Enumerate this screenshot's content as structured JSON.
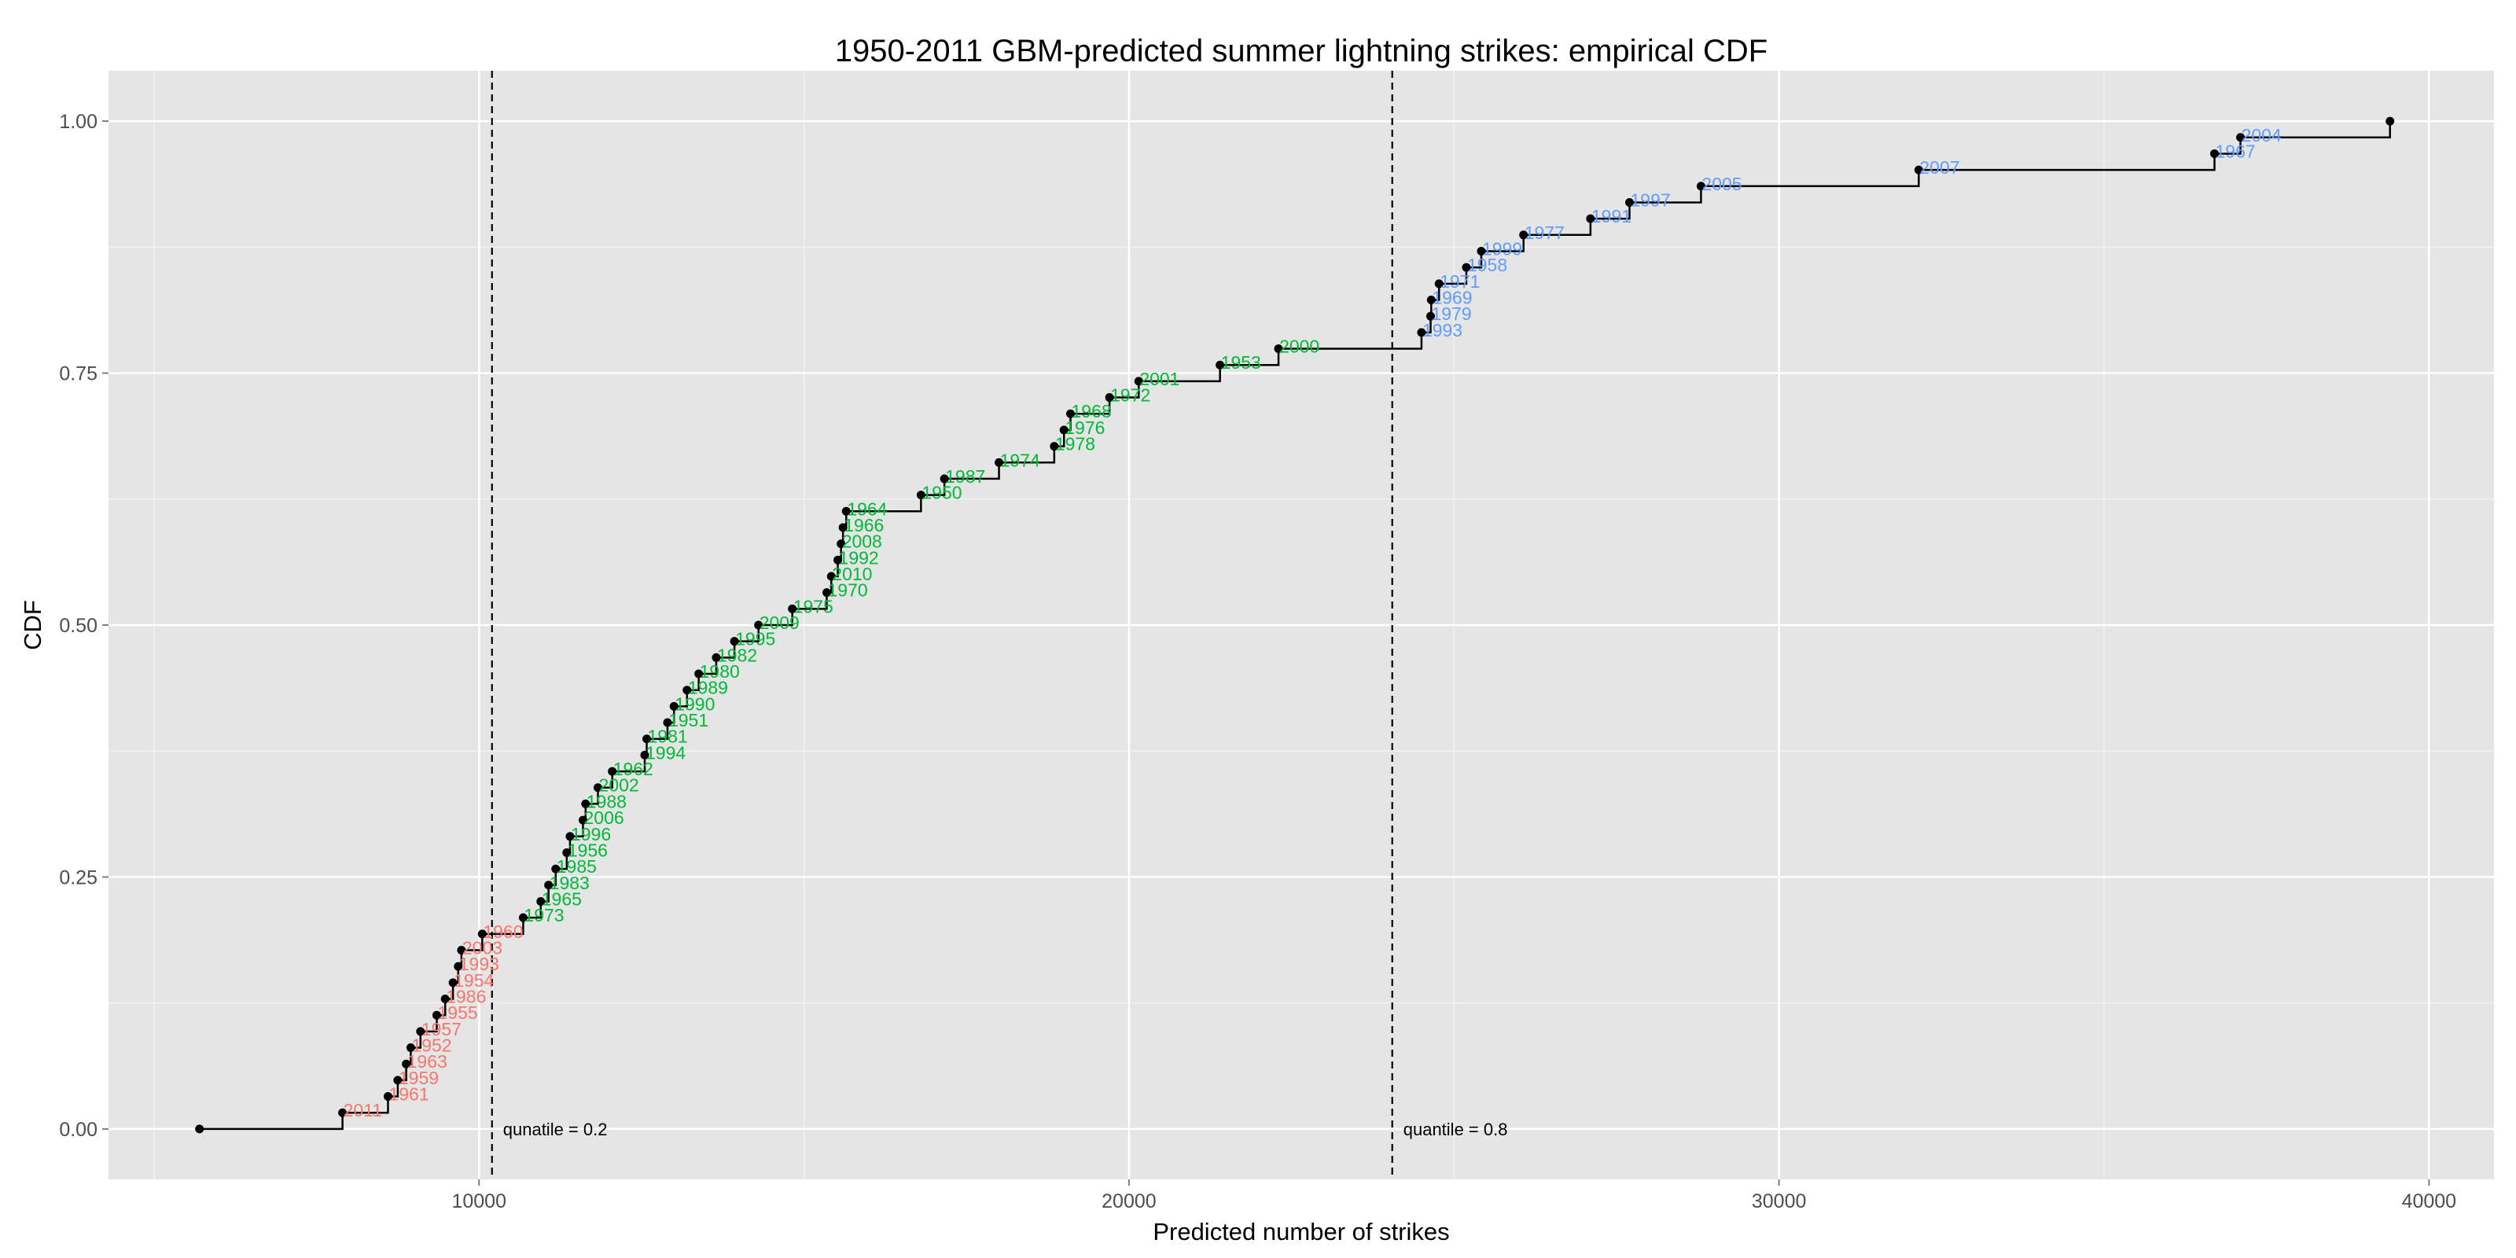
{
  "chart_data": {
    "type": "step",
    "title": "1950-2011 GBM-predicted summer lightning strikes: empirical CDF",
    "xlabel": "Predicted number of strikes",
    "ylabel": "CDF",
    "xlim": [
      4300,
      41000
    ],
    "ylim": [
      -0.05,
      1.05
    ],
    "x_ticks": [
      10000,
      20000,
      30000,
      40000
    ],
    "x_tick_labels": [
      "10000",
      "20000",
      "30000",
      "40000"
    ],
    "y_ticks": [
      0,
      0.25,
      0.5,
      0.75,
      1
    ],
    "y_tick_labels": [
      "0.00",
      "0.25",
      "0.50",
      "0.75",
      "1.00"
    ],
    "grid": true,
    "legend": "none",
    "vlines": [
      {
        "x": 10200,
        "label": "qunatile = 0.2"
      },
      {
        "x": 24050,
        "label": "quantile = 0.8"
      }
    ],
    "colors": {
      "low": "#F8766D",
      "mid": "#00BA38",
      "high": "#619CFF",
      "panel": "#E5E5E5",
      "step": "#000000"
    },
    "start_point": {
      "x": 5700,
      "y": 0.0
    },
    "points": [
      {
        "year": "2011",
        "x": 7900,
        "group": "low"
      },
      {
        "year": "1961",
        "x": 8600,
        "group": "low"
      },
      {
        "year": "1959",
        "x": 8750,
        "group": "low"
      },
      {
        "year": "1963",
        "x": 8880,
        "group": "low"
      },
      {
        "year": "1952",
        "x": 8950,
        "group": "low"
      },
      {
        "year": "1957",
        "x": 9100,
        "group": "low"
      },
      {
        "year": "1955",
        "x": 9350,
        "group": "low"
      },
      {
        "year": "1986",
        "x": 9480,
        "group": "low"
      },
      {
        "year": "1954",
        "x": 9600,
        "group": "low"
      },
      {
        "year": "1993",
        "x": 9680,
        "group": "low"
      },
      {
        "year": "2003",
        "x": 9730,
        "group": "low"
      },
      {
        "year": "1960",
        "x": 10050,
        "group": "low"
      },
      {
        "year": "1973",
        "x": 10680,
        "group": "mid"
      },
      {
        "year": "1965",
        "x": 10950,
        "group": "mid"
      },
      {
        "year": "1983",
        "x": 11070,
        "group": "mid"
      },
      {
        "year": "1985",
        "x": 11180,
        "group": "mid"
      },
      {
        "year": "1956",
        "x": 11350,
        "group": "mid"
      },
      {
        "year": "1996",
        "x": 11400,
        "group": "mid"
      },
      {
        "year": "2006",
        "x": 11600,
        "group": "mid"
      },
      {
        "year": "1988",
        "x": 11640,
        "group": "mid"
      },
      {
        "year": "2002",
        "x": 11830,
        "group": "mid"
      },
      {
        "year": "1962",
        "x": 12050,
        "group": "mid"
      },
      {
        "year": "1994",
        "x": 12550,
        "group": "mid"
      },
      {
        "year": "1981",
        "x": 12580,
        "group": "mid"
      },
      {
        "year": "1951",
        "x": 12900,
        "group": "mid"
      },
      {
        "year": "1990",
        "x": 13000,
        "group": "mid"
      },
      {
        "year": "1989",
        "x": 13200,
        "group": "mid"
      },
      {
        "year": "1980",
        "x": 13380,
        "group": "mid"
      },
      {
        "year": "1982",
        "x": 13650,
        "group": "mid"
      },
      {
        "year": "1995",
        "x": 13930,
        "group": "mid"
      },
      {
        "year": "2009",
        "x": 14300,
        "group": "mid"
      },
      {
        "year": "1975",
        "x": 14820,
        "group": "mid"
      },
      {
        "year": "1970",
        "x": 15350,
        "group": "mid"
      },
      {
        "year": "2010",
        "x": 15420,
        "group": "mid"
      },
      {
        "year": "1992",
        "x": 15520,
        "group": "mid"
      },
      {
        "year": "2008",
        "x": 15570,
        "group": "mid"
      },
      {
        "year": "1966",
        "x": 15600,
        "group": "mid"
      },
      {
        "year": "1964",
        "x": 15650,
        "group": "mid"
      },
      {
        "year": "1950",
        "x": 16800,
        "group": "mid"
      },
      {
        "year": "1987",
        "x": 17160,
        "group": "mid"
      },
      {
        "year": "1974",
        "x": 18000,
        "group": "mid"
      },
      {
        "year": "1978",
        "x": 18850,
        "group": "mid"
      },
      {
        "year": "1976",
        "x": 19000,
        "group": "mid"
      },
      {
        "year": "1968",
        "x": 19100,
        "group": "mid"
      },
      {
        "year": "1972",
        "x": 19700,
        "group": "mid"
      },
      {
        "year": "2001",
        "x": 20150,
        "group": "mid"
      },
      {
        "year": "1953",
        "x": 21400,
        "group": "mid"
      },
      {
        "year": "2000",
        "x": 22300,
        "group": "mid"
      },
      {
        "year": "1993",
        "x": 24500,
        "group": "high"
      },
      {
        "year": "1979",
        "x": 24640,
        "group": "high"
      },
      {
        "year": "1969",
        "x": 24650,
        "group": "high"
      },
      {
        "year": "1971",
        "x": 24770,
        "group": "high"
      },
      {
        "year": "1958",
        "x": 25190,
        "group": "high"
      },
      {
        "year": "1999",
        "x": 25420,
        "group": "high"
      },
      {
        "year": "1977",
        "x": 26070,
        "group": "high"
      },
      {
        "year": "1991",
        "x": 27100,
        "group": "high"
      },
      {
        "year": "1997",
        "x": 27700,
        "group": "high"
      },
      {
        "year": "2005",
        "x": 28800,
        "group": "high"
      },
      {
        "year": "2007",
        "x": 32150,
        "group": "high"
      },
      {
        "year": "1967",
        "x": 36700,
        "group": "high"
      },
      {
        "year": "2004",
        "x": 37100,
        "group": "high"
      },
      {
        "year": "",
        "x": 39400,
        "group": "high"
      }
    ]
  }
}
